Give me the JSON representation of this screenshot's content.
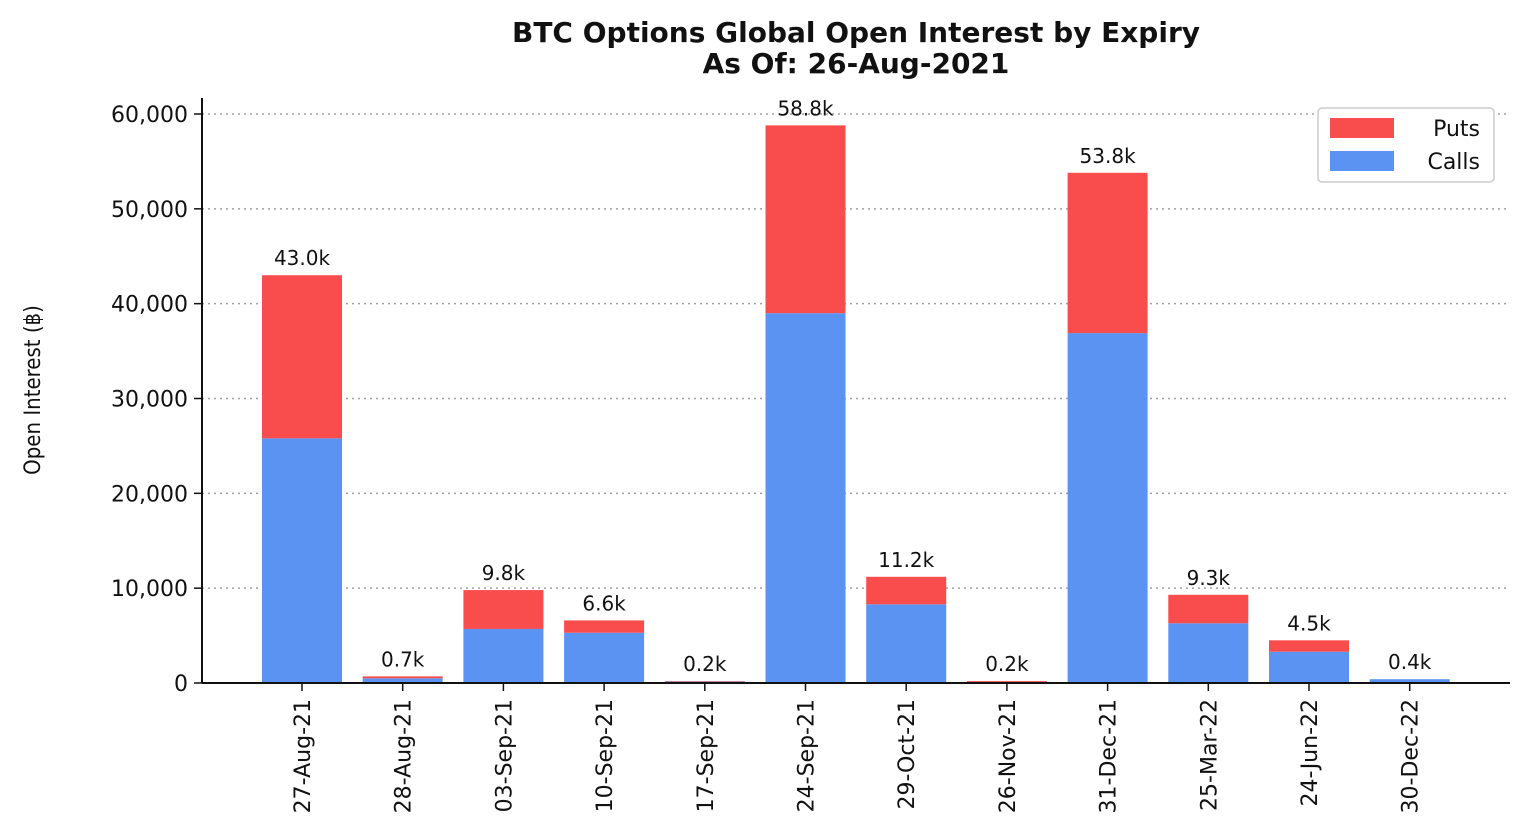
{
  "chart_data": {
    "type": "bar",
    "stacked": true,
    "title": "BTC Options Global Open Interest by Expiry",
    "subtitle": "As Of: 26-Aug-2021",
    "xlabel": "",
    "ylabel": "Open Interest (฿)",
    "ylim": [
      0,
      62000
    ],
    "yticks": [
      0,
      10000,
      20000,
      30000,
      40000,
      50000,
      60000
    ],
    "ytick_labels": [
      "0",
      "10,000",
      "20,000",
      "30,000",
      "40,000",
      "50,000",
      "60,000"
    ],
    "grid": "horizontal-dotted",
    "legend_position": "top-right",
    "categories": [
      "27-Aug-21",
      "28-Aug-21",
      "03-Sep-21",
      "10-Sep-21",
      "17-Sep-21",
      "24-Sep-21",
      "29-Oct-21",
      "26-Nov-21",
      "31-Dec-21",
      "25-Mar-22",
      "24-Jun-22",
      "30-Dec-22"
    ],
    "series": [
      {
        "name": "Calls",
        "color": "#5b93f3",
        "values": [
          25800,
          500,
          5700,
          5300,
          150,
          39000,
          8300,
          50,
          36900,
          6300,
          3300,
          400
        ]
      },
      {
        "name": "Puts",
        "color": "#f94d4d",
        "values": [
          17200,
          200,
          4100,
          1300,
          50,
          19800,
          2900,
          150,
          16900,
          3000,
          1200,
          0
        ]
      }
    ],
    "totals_labels": [
      "43.0k",
      "0.7k",
      "9.8k",
      "6.6k",
      "0.2k",
      "58.8k",
      "11.2k",
      "0.2k",
      "53.8k",
      "9.3k",
      "4.5k",
      "0.4k"
    ],
    "legend_order": [
      "Puts",
      "Calls"
    ]
  }
}
